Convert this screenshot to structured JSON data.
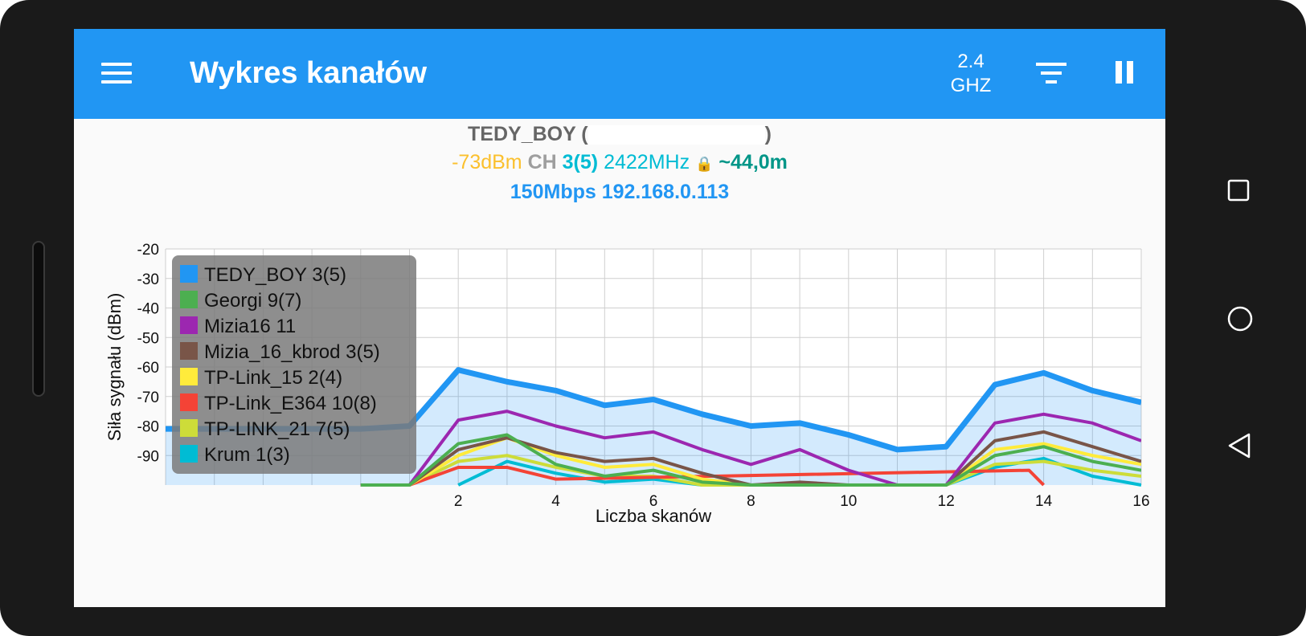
{
  "app": {
    "title": "Wykres kanałów",
    "band": "2.4\nGHZ",
    "appbar_color": "#2196F3",
    "menu_icon": "menu-icon",
    "filter_icon": "filter-icon",
    "pause_icon": "pause-icon"
  },
  "connection": {
    "ssid": "TEDY_BOY",
    "ssid_open": "(",
    "ssid_close": ")",
    "signal": "-73dBm",
    "ch_label": "CH",
    "channel": "3(5)",
    "frequency": "2422MHz",
    "distance": "~44,0m",
    "speed_ip": "150Mbps 192.168.0.113"
  },
  "chart_data": {
    "type": "line",
    "ylabel": "Siła sygnału (dBm)",
    "xlabel": "Liczba skanów",
    "y_ticks": [
      "-20",
      "-30",
      "-40",
      "-50",
      "-60",
      "-70",
      "-80",
      "-90"
    ],
    "x_ticks": [
      "2",
      "4",
      "6",
      "8",
      "10",
      "12",
      "14",
      "16"
    ],
    "ylim": [
      -100,
      -20
    ],
    "xlim": [
      -4,
      16
    ],
    "grid": true,
    "legend_position": "top-left",
    "series": [
      {
        "name": "TEDY_BOY 3(5)",
        "color": "#2196F3",
        "width": 7,
        "fill": true,
        "x": [
          -4,
          -3,
          -2,
          -1,
          0,
          1,
          2,
          3,
          4,
          5,
          6,
          7,
          8,
          9,
          10,
          11,
          12,
          13,
          14,
          15,
          16
        ],
        "y": [
          -81,
          -81,
          -81,
          -81,
          -81,
          -80,
          -61,
          -65,
          -68,
          -73,
          -71,
          -76,
          -80,
          -79,
          -83,
          -88,
          -87,
          -66,
          -62,
          -68,
          -72
        ]
      },
      {
        "name": "Georgi 9(7)",
        "color": "#4CAF50",
        "width": 4,
        "x": [
          0,
          1,
          2,
          3,
          4,
          5,
          6,
          7,
          8,
          9,
          10,
          11,
          12,
          13,
          14,
          15,
          16
        ],
        "y": [
          -100,
          -100,
          -86,
          -83,
          -93,
          -97,
          -95,
          -99,
          -100,
          -100,
          -100,
          -100,
          -100,
          -90,
          -87,
          -92,
          -95
        ]
      },
      {
        "name": "Mizia16 11",
        "color": "#9C27B0",
        "width": 4,
        "x": [
          0,
          1,
          2,
          3,
          4,
          5,
          6,
          7,
          8,
          9,
          10,
          11,
          12,
          13,
          14,
          15,
          16
        ],
        "y": [
          -100,
          -100,
          -78,
          -75,
          -80,
          -84,
          -82,
          -88,
          -93,
          -88,
          -95,
          -100,
          -100,
          -79,
          -76,
          -79,
          -85
        ]
      },
      {
        "name": "Mizia_16_kbrod 3(5)",
        "color": "#795548",
        "width": 4,
        "x": [
          0,
          1,
          2,
          3,
          4,
          5,
          6,
          7,
          8,
          9,
          10,
          11,
          12,
          13,
          14,
          15,
          16
        ],
        "y": [
          -100,
          -100,
          -88,
          -84,
          -89,
          -92,
          -91,
          -96,
          -100,
          -99,
          -100,
          -100,
          -100,
          -85,
          -82,
          -87,
          -92
        ]
      },
      {
        "name": "TP-Link_15 2(4)",
        "color": "#FFEB3B",
        "width": 4,
        "x": [
          0,
          1,
          2,
          3,
          4,
          5,
          6,
          7,
          8,
          9,
          10,
          11,
          12,
          13,
          14,
          15,
          16
        ],
        "y": [
          -100,
          -100,
          -90,
          -84,
          -90,
          -94,
          -93,
          -98,
          -100,
          -100,
          -100,
          -100,
          -100,
          -88,
          -86,
          -90,
          -93
        ]
      },
      {
        "name": "TP-Link_E364 10(8)",
        "color": "#F44336",
        "width": 4,
        "x": [
          0,
          1,
          2,
          3,
          4,
          13.7,
          14
        ],
        "y": [
          -100,
          -100,
          -94,
          -94,
          -98,
          -95,
          -100
        ]
      },
      {
        "name": "TP-LINK_21 7(5)",
        "color": "#CDDC39",
        "width": 4,
        "x": [
          0,
          1,
          2,
          3,
          4,
          5,
          6,
          7,
          8,
          9,
          10,
          11,
          12,
          13,
          14,
          15,
          16
        ],
        "y": [
          -100,
          -100,
          -92,
          -90,
          -94,
          -97,
          -97,
          -100,
          -100,
          -100,
          -100,
          -100,
          -100,
          -93,
          -92,
          -95,
          -97
        ]
      },
      {
        "name": "Krum 1(3)",
        "color": "#00BCD4",
        "width": 4,
        "x": [
          2,
          3,
          4,
          5,
          6,
          7,
          8,
          9,
          10,
          11,
          12,
          13,
          14,
          15,
          16
        ],
        "y": [
          -100,
          -92,
          -96,
          -99,
          -98,
          -100,
          -100,
          -100,
          -100,
          -100,
          -100,
          -94,
          -91,
          -97,
          -100
        ]
      }
    ]
  },
  "nav": {
    "recent_icon": "square-recent-apps-icon",
    "home_icon": "circle-home-icon",
    "back_icon": "triangle-back-icon"
  }
}
